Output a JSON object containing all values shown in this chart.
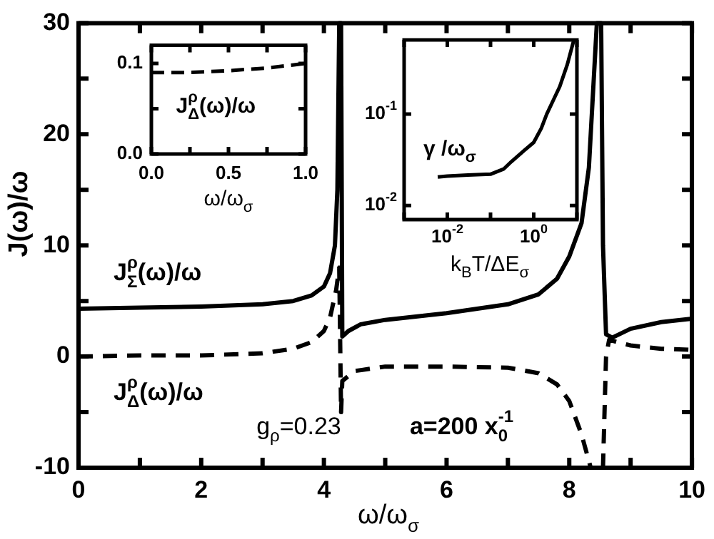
{
  "chart_data": [
    {
      "type": "line",
      "xlabel": "ω/ω$_{σ}$",
      "ylabel": "J(ω)/ω",
      "xlim": [
        0,
        10
      ],
      "ylim": [
        -10,
        30
      ],
      "xticks": [
        0,
        {
          "value": 1,
          "label": null
        },
        2,
        {
          "value": 3,
          "label": null
        },
        4,
        {
          "value": 5,
          "label": null
        },
        6,
        {
          "value": 7,
          "label": null
        },
        8,
        {
          "value": 9,
          "label": null
        },
        10
      ],
      "yticks": [
        -10,
        {
          "value": -5,
          "label": null
        },
        0,
        {
          "value": 5,
          "label": null
        },
        10,
        {
          "value": 15,
          "label": null
        },
        20,
        {
          "value": 25,
          "label": null
        },
        30
      ],
      "legend": false,
      "marker": "none",
      "series": [
        {
          "name": "J$_{Σ}$$^{ρ}$(ω)/ω",
          "color": "#000000",
          "line_style": "solid",
          "x": [
            0,
            1,
            2,
            3,
            3.5,
            3.8,
            4.0,
            4.1,
            4.18,
            4.22,
            4.25,
            4.28,
            4.3,
            4.4,
            4.6,
            5,
            6,
            7,
            7.5,
            7.8,
            8.0,
            8.2,
            8.32,
            8.4,
            8.45,
            8.52,
            8.55,
            8.6,
            8.7,
            9,
            9.5,
            10
          ],
          "values": [
            4.3,
            4.4,
            4.5,
            4.7,
            5.0,
            5.5,
            6.3,
            7.5,
            10,
            15,
            30,
            30,
            1.8,
            2.3,
            2.9,
            3.3,
            3.9,
            4.7,
            5.6,
            7,
            9,
            12,
            17,
            25,
            30,
            30,
            10,
            2.0,
            1.7,
            2.5,
            3.1,
            3.4
          ]
        },
        {
          "name": "J$_{Δ}$$^{ρ}$(ω)/ω",
          "color": "#000000",
          "line_style": "dashed",
          "x": [
            0,
            1,
            2,
            3,
            3.5,
            3.8,
            4.0,
            4.1,
            4.2,
            4.25,
            4.28,
            4.3,
            4.5,
            5,
            6,
            7,
            7.5,
            7.8,
            8.0,
            8.2,
            8.35,
            8.45,
            8.55,
            8.6,
            8.65,
            9,
            9.5,
            10
          ],
          "values": [
            0,
            0.1,
            0.1,
            0.3,
            0.7,
            1.3,
            2.3,
            3.5,
            6,
            8,
            -5,
            -2.2,
            -1.3,
            -0.9,
            -0.9,
            -1.0,
            -1.5,
            -2.5,
            -4,
            -7,
            -10,
            null,
            -10,
            0,
            1.5,
            1.0,
            0.7,
            0.6
          ]
        }
      ],
      "annotations": [
        "g$_{ρ}$=0.23",
        "a=200 x$_{0}$$^{-1}$"
      ]
    },
    {
      "type": "line",
      "xlabel": "ω/ω$_{σ}$",
      "ylabel": "J$_{Δ}$$^{ρ}$(ω)/ω",
      "xlim": [
        0,
        1
      ],
      "ylim": [
        0,
        0.12
      ],
      "xticks": [
        {
          "value": 0,
          "label": "0.0"
        },
        {
          "value": 0.25,
          "label": null
        },
        {
          "value": 0.5,
          "label": "0.5"
        },
        {
          "value": 0.75,
          "label": null
        },
        {
          "value": 1,
          "label": "1.0"
        }
      ],
      "yticks": [
        {
          "value": 0,
          "label": "0.0"
        },
        {
          "value": 0.05,
          "label": null
        },
        {
          "value": 0.1,
          "label": "0.1"
        }
      ],
      "legend": false,
      "marker": "none",
      "series": [
        {
          "color": "#000000",
          "line_style": "dashed",
          "x": [
            0,
            0.25,
            0.5,
            0.75,
            1
          ],
          "values": [
            0.09,
            0.09,
            0.092,
            0.095,
            0.1
          ]
        }
      ]
    },
    {
      "type": "line",
      "xlabel": "k$_{B}$T/ΔE$_{σ}$",
      "ylabel": "γ /ω$_{σ}$",
      "log": "xy",
      "xlim": [
        0.001,
        10
      ],
      "ylim": [
        0.007,
        0.65
      ],
      "xticks": [
        {
          "value": 0.001,
          "label": null
        },
        {
          "value": 0.01,
          "label": "10$^{-2}$"
        },
        {
          "value": 0.1,
          "label": null
        },
        {
          "value": 1,
          "label": "10$^{0}$"
        },
        {
          "value": 10,
          "label": null
        }
      ],
      "yticks": [
        {
          "value": 0.01,
          "label": "10$^{-2}$"
        },
        {
          "value": 0.1,
          "label": "10$^{-1}$"
        }
      ],
      "legend": false,
      "marker": "none",
      "series": [
        {
          "color": "#000000",
          "line_style": "solid",
          "x": [
            0.006,
            0.01,
            0.03,
            0.1,
            0.2,
            0.3,
            0.6,
            1,
            1.5,
            2,
            3,
            4,
            6,
            8.5
          ],
          "values": [
            0.0205,
            0.021,
            0.0215,
            0.022,
            0.025,
            0.03,
            0.04,
            0.049,
            0.07,
            0.1,
            0.15,
            0.2,
            0.35,
            0.65
          ]
        }
      ]
    }
  ]
}
